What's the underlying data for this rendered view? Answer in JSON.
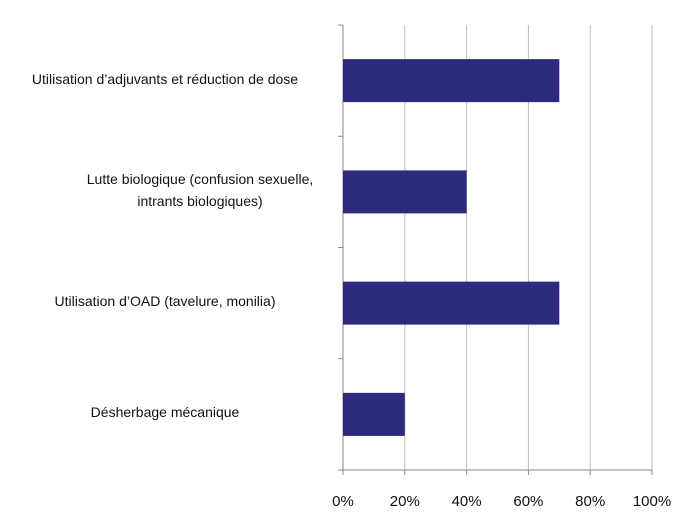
{
  "chart_data": {
    "type": "bar",
    "orientation": "horizontal",
    "categories": [
      "Utilisation d’adjuvants et réduction de dose",
      "Lutte biologique (confusion sexuelle, intrants biologiques)",
      "Utilisation d’OAD (tavelure, monilia)",
      "Désherbage mécanique"
    ],
    "values": [
      70,
      40,
      70,
      20
    ],
    "color": "#2b2a7c",
    "xlim": [
      0,
      100
    ],
    "xticks": [
      {
        "value": 0,
        "label": "0%"
      },
      {
        "value": 20,
        "label": "20%"
      },
      {
        "value": 40,
        "label": "40%"
      },
      {
        "value": 60,
        "label": "60%"
      },
      {
        "value": 80,
        "label": "80%"
      },
      {
        "value": 100,
        "label": "100%"
      }
    ],
    "grid": true
  }
}
